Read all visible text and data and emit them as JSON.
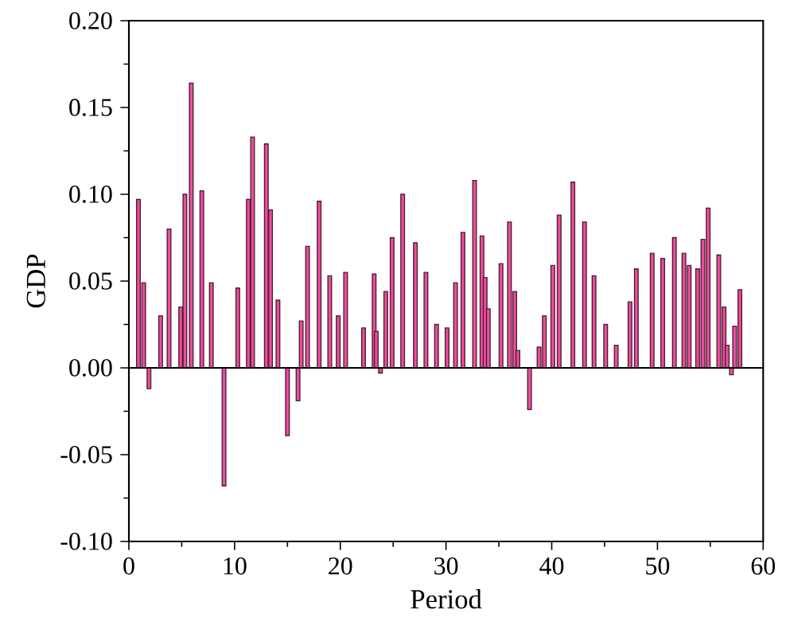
{
  "chart_data": {
    "type": "bar",
    "xlabel": "Period",
    "ylabel": "GDP",
    "color": "#ee4c9e",
    "x": [
      0.9,
      1.4,
      1.9,
      3.0,
      3.8,
      4.9,
      5.3,
      5.9,
      6.9,
      7.8,
      8.5,
      9.0,
      9.7,
      10.3,
      11.3,
      11.7,
      13.0,
      13.4,
      14.1,
      15.0,
      16.0,
      16.3,
      16.9,
      18.0,
      19.0,
      19.8,
      20.5,
      22.2,
      23.2,
      23.4,
      23.8,
      24.3,
      24.9,
      25.9,
      27.1,
      28.1,
      29.1,
      30.1,
      30.9,
      31.6,
      32.7,
      33.4,
      33.7,
      34.0,
      35.2,
      36.0,
      36.5,
      36.8,
      37.9,
      38.5,
      38.8,
      39.3,
      40.1,
      40.7,
      42.0,
      43.1,
      44.0,
      45.1,
      46.1,
      47.4,
      48.0,
      49.5,
      50.5,
      51.6,
      52.5,
      53.0,
      53.8,
      54.3,
      54.8,
      55.8,
      56.3,
      56.6,
      57.0,
      57.3,
      57.8
    ],
    "values": [
      0.097,
      0.049,
      -0.012,
      0.03,
      0.08,
      0.035,
      0.1,
      0.164,
      0.102,
      0.049,
      null,
      -0.068,
      null,
      0.046,
      0.097,
      0.133,
      0.129,
      0.091,
      0.039,
      -0.039,
      -0.019,
      0.027,
      0.07,
      0.096,
      0.053,
      0.03,
      0.055,
      0.023,
      0.054,
      0.021,
      -0.003,
      0.044,
      0.075,
      0.1,
      0.072,
      0.055,
      0.025,
      0.023,
      0.049,
      0.078,
      0.108,
      0.076,
      0.052,
      0.034,
      0.06,
      0.084,
      0.044,
      0.01,
      -0.024,
      null,
      0.012,
      0.03,
      0.059,
      0.088,
      0.107,
      0.084,
      0.053,
      0.025,
      0.013,
      0.038,
      0.057,
      0.066,
      0.063,
      0.075,
      0.066,
      0.059,
      0.057,
      0.074,
      0.092,
      0.065,
      0.035,
      0.013,
      -0.004,
      0.024,
      0.045
    ],
    "xlim": [
      0,
      60
    ],
    "xticks": [
      0,
      10,
      20,
      30,
      40,
      50,
      60
    ],
    "ylim": [
      -0.1,
      0.2
    ],
    "yticks": [
      {
        "value": -0.1,
        "label": "-0.10"
      },
      {
        "value": -0.05,
        "label": "-0.05"
      },
      {
        "value": 0,
        "label": "0.00"
      },
      {
        "value": 0.05,
        "label": "0.05"
      },
      {
        "value": 0.1,
        "label": "0.10"
      },
      {
        "value": 0.15,
        "label": "0.15"
      },
      {
        "value": 0.2,
        "label": "0.20"
      }
    ],
    "ref_lines": [
      {
        "axis": "y",
        "value": 0,
        "color": "#000000"
      }
    ]
  }
}
